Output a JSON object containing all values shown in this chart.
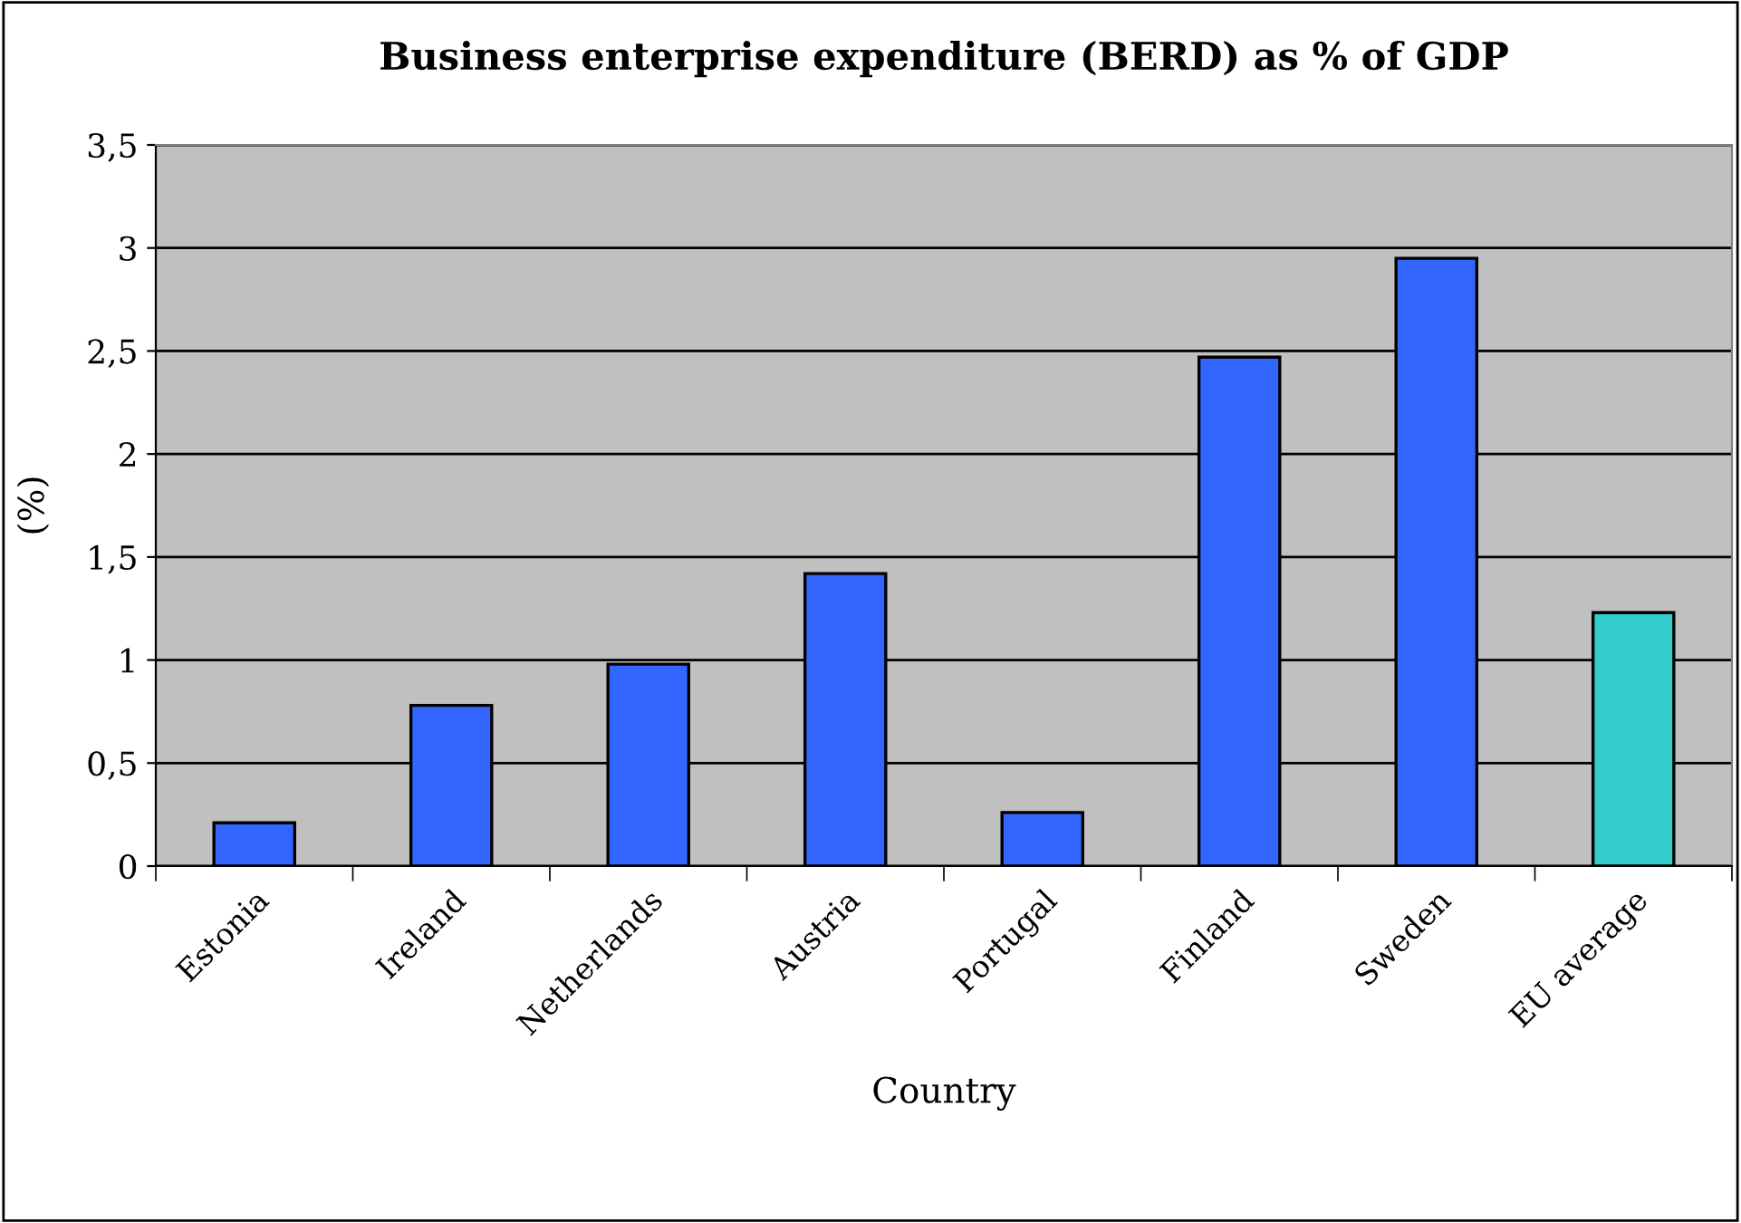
{
  "chart_data": {
    "type": "bar",
    "title": "Business enterprise expenditure (BERD) as % of GDP",
    "xlabel": "Country",
    "ylabel": "(%)",
    "categories": [
      "Estonia",
      "Ireland",
      "Netherlands",
      "Austria",
      "Portugal",
      "Finland",
      "Sweden",
      "EU average"
    ],
    "values": [
      0.21,
      0.78,
      0.98,
      1.42,
      0.26,
      2.47,
      2.95,
      1.23
    ],
    "colors": [
      "#3366ff",
      "#3366ff",
      "#3366ff",
      "#3366ff",
      "#3366ff",
      "#3366ff",
      "#3366ff",
      "#33cccc"
    ],
    "ylim": [
      0,
      3.5
    ],
    "yticks": [
      {
        "value": 0,
        "label": "0"
      },
      {
        "value": 0.5,
        "label": "0,5"
      },
      {
        "value": 1,
        "label": "1"
      },
      {
        "value": 1.5,
        "label": "1,5"
      },
      {
        "value": 2,
        "label": "2"
      },
      {
        "value": 2.5,
        "label": "2,5"
      },
      {
        "value": 3,
        "label": "3"
      },
      {
        "value": 3.5,
        "label": "3,5"
      }
    ],
    "grid": "y"
  }
}
